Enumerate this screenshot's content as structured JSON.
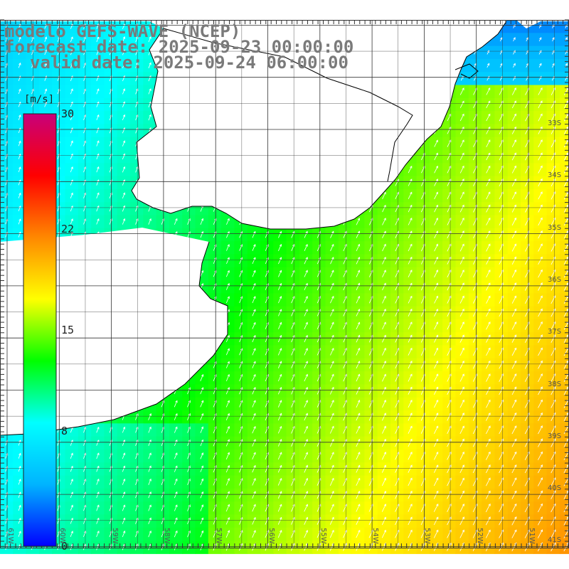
{
  "header": {
    "line1": "modelo GEFS-WAVE (NCEP)",
    "line2": "forecast date: 2025-09-23 00:00:00",
    "line3": "valid date: 2025-09-24 06:00:00"
  },
  "colorbar": {
    "unit": "[m/s]",
    "min": 0,
    "max": 30,
    "ticks": [
      "30",
      "22",
      "15",
      "8",
      "0"
    ],
    "tick_values": [
      30,
      22,
      15,
      8,
      0
    ],
    "colors": [
      "#0000ff",
      "#00b4ff",
      "#00ffff",
      "#00ff00",
      "#ffff00",
      "#ff8800",
      "#ff0000",
      "#c8007a"
    ]
  },
  "axes": {
    "lat_labels": [
      "33S",
      "34S",
      "35S",
      "36S",
      "37S",
      "38S",
      "39S",
      "40S",
      "41S"
    ],
    "lat_values": [
      -33,
      -34,
      -35,
      -36,
      -37,
      -38,
      -39,
      -40,
      -41
    ],
    "lon_labels": [
      "61W",
      "60W",
      "59W",
      "58W",
      "57W",
      "56W",
      "55W",
      "54W",
      "53W",
      "52W",
      "51W"
    ],
    "lon_values": [
      -61,
      -60,
      -59,
      -58,
      -57,
      -56,
      -55,
      -54,
      -53,
      -52,
      -51
    ]
  },
  "colors": {
    "land": "#ffffff",
    "coast": "#000000",
    "grid": "#333333",
    "title": "#7a7a7a"
  }
}
